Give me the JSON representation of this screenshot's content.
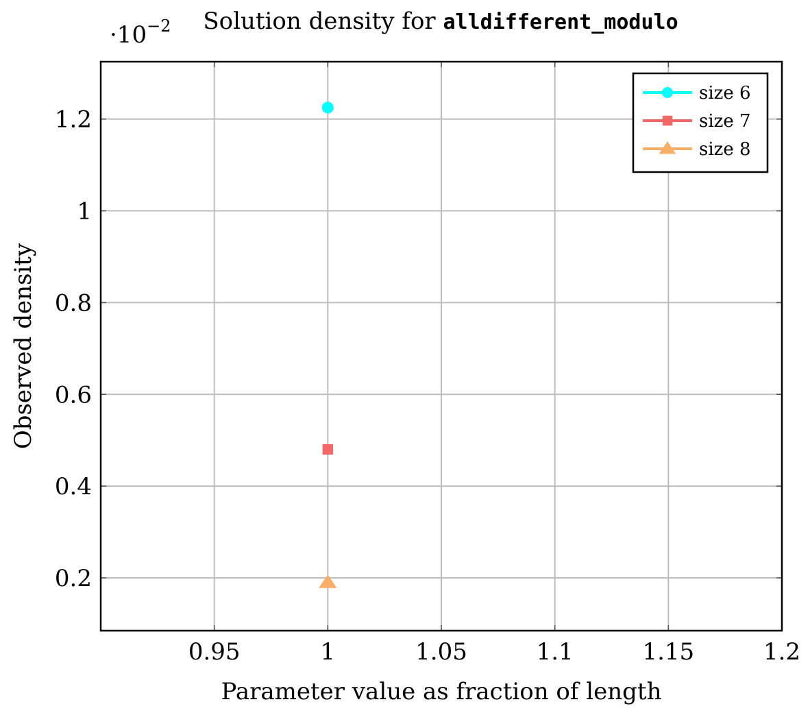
{
  "chart_data": {
    "type": "scatter",
    "title_prefix": "Solution density for ",
    "title_code": "alldifferent_modulo",
    "scale_label": "·10",
    "scale_exponent": "−2",
    "xlabel": "Parameter value as fraction of length",
    "ylabel": "Observed density",
    "xlim": [
      0.9,
      1.2
    ],
    "ylim": [
      0.085,
      1.325
    ],
    "x_ticks": [
      {
        "value": 0.95,
        "label": "0.95"
      },
      {
        "value": 1.0,
        "label": "1"
      },
      {
        "value": 1.05,
        "label": "1.05"
      },
      {
        "value": 1.1,
        "label": "1.1"
      },
      {
        "value": 1.15,
        "label": "1.15"
      },
      {
        "value": 1.2,
        "label": "1.2"
      }
    ],
    "y_ticks": [
      {
        "value": 0.2,
        "label": "0.2"
      },
      {
        "value": 0.4,
        "label": "0.4"
      },
      {
        "value": 0.6,
        "label": "0.6"
      },
      {
        "value": 0.8,
        "label": "0.8"
      },
      {
        "value": 1.0,
        "label": "1"
      },
      {
        "value": 1.2,
        "label": "1.2"
      }
    ],
    "grid": true,
    "legend_position": "top-right",
    "series": [
      {
        "name": "size 6",
        "color": "#00ffff",
        "marker": "circle",
        "points": [
          {
            "x": 1.0,
            "y": 1.225
          }
        ]
      },
      {
        "name": "size 7",
        "color": "#f56666",
        "marker": "square",
        "points": [
          {
            "x": 1.0,
            "y": 0.48
          }
        ]
      },
      {
        "name": "size 8",
        "color": "#f7ad66",
        "marker": "triangle",
        "points": [
          {
            "x": 1.0,
            "y": 0.19
          }
        ]
      }
    ]
  }
}
